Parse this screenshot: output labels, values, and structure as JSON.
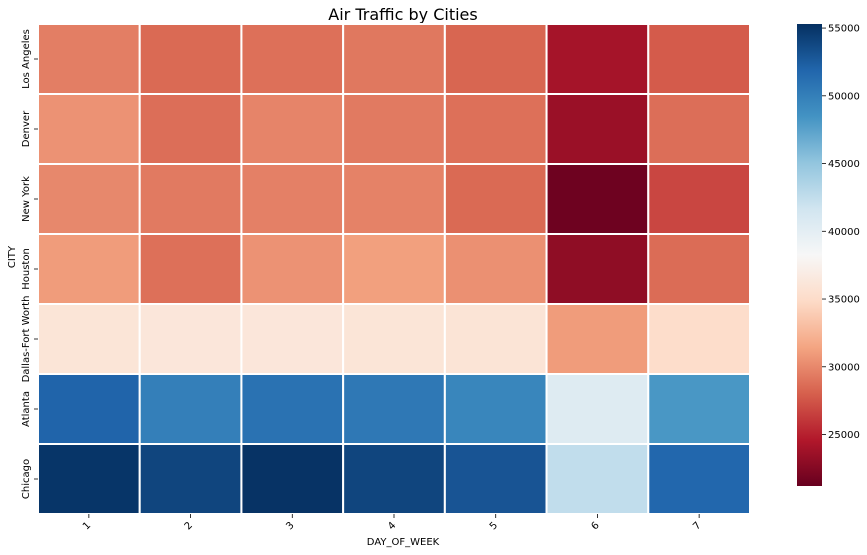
{
  "chart_data": {
    "type": "heatmap",
    "title": "Air Traffic by Cities",
    "xlabel": "DAY_OF_WEEK",
    "ylabel": "CITY",
    "x_categories": [
      "1",
      "2",
      "3",
      "4",
      "5",
      "6",
      "7"
    ],
    "y_categories": [
      "Los Angeles",
      "Denver",
      "New York",
      "Houston",
      "Dallas-Fort Worth",
      "Atlanta",
      "Chicago"
    ],
    "values": [
      [
        29500,
        28500,
        28800,
        29200,
        28300,
        24000,
        27800
      ],
      [
        30500,
        28700,
        29800,
        29300,
        28800,
        23500,
        28700
      ],
      [
        30000,
        29300,
        29600,
        29700,
        28500,
        21500,
        26800
      ],
      [
        31000,
        28800,
        30500,
        31200,
        30400,
        23000,
        28600
      ],
      [
        36000,
        36200,
        36200,
        36000,
        35900,
        31000,
        35100
      ],
      [
        52000,
        50000,
        51000,
        50500,
        49500,
        40500,
        48200
      ],
      [
        55000,
        54000,
        55100,
        54000,
        53000,
        42500,
        51800
      ]
    ],
    "colorbar": {
      "vmin": 21200,
      "vmax": 55300,
      "ticks": [
        25000,
        30000,
        35000,
        40000,
        45000,
        50000,
        55000
      ],
      "colormap": "RdBu"
    }
  }
}
